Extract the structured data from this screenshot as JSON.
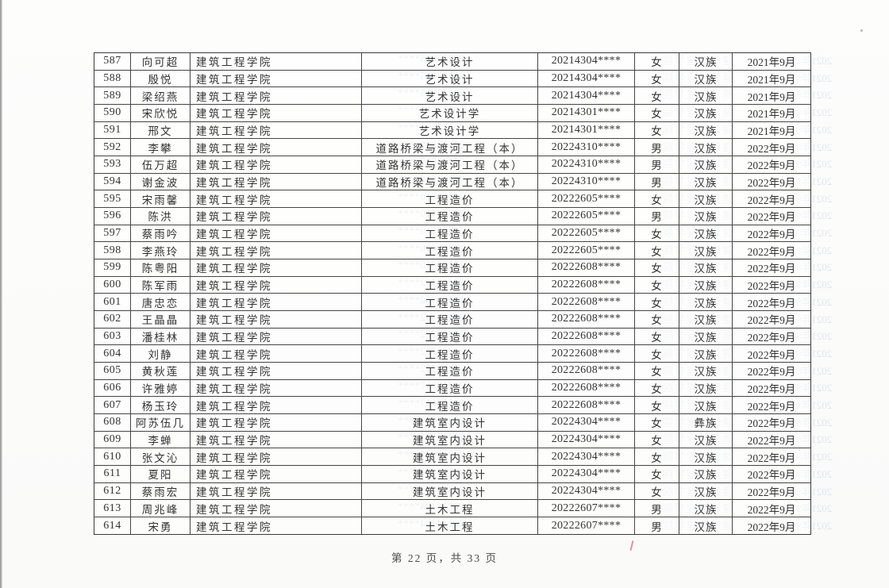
{
  "page": {
    "footer": "第 22 页，共 33 页"
  },
  "table": {
    "rows": [
      {
        "number": "587",
        "name": "向可超",
        "college": "建筑工程学院",
        "major": "艺术设计",
        "student_id": "20214304****",
        "gender": "女",
        "ethnicity": "汉族",
        "enrollment": "2021年9月"
      },
      {
        "number": "588",
        "name": "殷悦",
        "college": "建筑工程学院",
        "major": "艺术设计",
        "student_id": "20214304****",
        "gender": "女",
        "ethnicity": "汉族",
        "enrollment": "2021年9月"
      },
      {
        "number": "589",
        "name": "梁绍燕",
        "college": "建筑工程学院",
        "major": "艺术设计",
        "student_id": "20214304****",
        "gender": "女",
        "ethnicity": "汉族",
        "enrollment": "2021年9月"
      },
      {
        "number": "590",
        "name": "宋欣悦",
        "college": "建筑工程学院",
        "major": "艺术设计学",
        "student_id": "20214301****",
        "gender": "女",
        "ethnicity": "汉族",
        "enrollment": "2021年9月"
      },
      {
        "number": "591",
        "name": "邢文",
        "college": "建筑工程学院",
        "major": "艺术设计学",
        "student_id": "20214301****",
        "gender": "女",
        "ethnicity": "汉族",
        "enrollment": "2021年9月"
      },
      {
        "number": "592",
        "name": "李攀",
        "college": "建筑工程学院",
        "major": "道路桥梁与渡河工程（本）",
        "student_id": "20224310****",
        "gender": "男",
        "ethnicity": "汉族",
        "enrollment": "2022年9月"
      },
      {
        "number": "593",
        "name": "伍万超",
        "college": "建筑工程学院",
        "major": "道路桥梁与渡河工程（本）",
        "student_id": "20224310****",
        "gender": "男",
        "ethnicity": "汉族",
        "enrollment": "2022年9月"
      },
      {
        "number": "594",
        "name": "谢金波",
        "college": "建筑工程学院",
        "major": "道路桥梁与渡河工程（本）",
        "student_id": "20224310****",
        "gender": "男",
        "ethnicity": "汉族",
        "enrollment": "2022年9月"
      },
      {
        "number": "595",
        "name": "宋雨馨",
        "college": "建筑工程学院",
        "major": "工程造价",
        "student_id": "20222605****",
        "gender": "女",
        "ethnicity": "汉族",
        "enrollment": "2022年9月"
      },
      {
        "number": "596",
        "name": "陈洪",
        "college": "建筑工程学院",
        "major": "工程造价",
        "student_id": "20222605****",
        "gender": "男",
        "ethnicity": "汉族",
        "enrollment": "2022年9月"
      },
      {
        "number": "597",
        "name": "蔡雨吟",
        "college": "建筑工程学院",
        "major": "工程造价",
        "student_id": "20222605****",
        "gender": "女",
        "ethnicity": "汉族",
        "enrollment": "2022年9月"
      },
      {
        "number": "598",
        "name": "李燕玲",
        "college": "建筑工程学院",
        "major": "工程造价",
        "student_id": "20222605****",
        "gender": "女",
        "ethnicity": "汉族",
        "enrollment": "2022年9月"
      },
      {
        "number": "599",
        "name": "陈粤阳",
        "college": "建筑工程学院",
        "major": "工程造价",
        "student_id": "20222608****",
        "gender": "女",
        "ethnicity": "汉族",
        "enrollment": "2022年9月"
      },
      {
        "number": "600",
        "name": "陈军雨",
        "college": "建筑工程学院",
        "major": "工程造价",
        "student_id": "20222608****",
        "gender": "女",
        "ethnicity": "汉族",
        "enrollment": "2022年9月"
      },
      {
        "number": "601",
        "name": "唐忠恋",
        "college": "建筑工程学院",
        "major": "工程造价",
        "student_id": "20222608****",
        "gender": "女",
        "ethnicity": "汉族",
        "enrollment": "2022年9月"
      },
      {
        "number": "602",
        "name": "王晶晶",
        "college": "建筑工程学院",
        "major": "工程造价",
        "student_id": "20222608****",
        "gender": "女",
        "ethnicity": "汉族",
        "enrollment": "2022年9月"
      },
      {
        "number": "603",
        "name": "潘桂林",
        "college": "建筑工程学院",
        "major": "工程造价",
        "student_id": "20222608****",
        "gender": "女",
        "ethnicity": "汉族",
        "enrollment": "2022年9月"
      },
      {
        "number": "604",
        "name": "刘静",
        "college": "建筑工程学院",
        "major": "工程造价",
        "student_id": "20222608****",
        "gender": "女",
        "ethnicity": "汉族",
        "enrollment": "2022年9月"
      },
      {
        "number": "605",
        "name": "黄秋莲",
        "college": "建筑工程学院",
        "major": "工程造价",
        "student_id": "20222608****",
        "gender": "女",
        "ethnicity": "汉族",
        "enrollment": "2022年9月"
      },
      {
        "number": "606",
        "name": "许雅婷",
        "college": "建筑工程学院",
        "major": "工程造价",
        "student_id": "20222608****",
        "gender": "女",
        "ethnicity": "汉族",
        "enrollment": "2022年9月"
      },
      {
        "number": "607",
        "name": "杨玉玲",
        "college": "建筑工程学院",
        "major": "工程造价",
        "student_id": "20222608****",
        "gender": "女",
        "ethnicity": "汉族",
        "enrollment": "2022年9月"
      },
      {
        "number": "608",
        "name": "阿苏伍几",
        "college": "建筑工程学院",
        "major": "建筑室内设计",
        "student_id": "20224304****",
        "gender": "女",
        "ethnicity": "彝族",
        "enrollment": "2022年9月"
      },
      {
        "number": "609",
        "name": "李蝉",
        "college": "建筑工程学院",
        "major": "建筑室内设计",
        "student_id": "20224304****",
        "gender": "女",
        "ethnicity": "汉族",
        "enrollment": "2022年9月"
      },
      {
        "number": "610",
        "name": "张文沁",
        "college": "建筑工程学院",
        "major": "建筑室内设计",
        "student_id": "20224304****",
        "gender": "女",
        "ethnicity": "汉族",
        "enrollment": "2022年9月"
      },
      {
        "number": "611",
        "name": "夏阳",
        "college": "建筑工程学院",
        "major": "建筑室内设计",
        "student_id": "20224304****",
        "gender": "女",
        "ethnicity": "汉族",
        "enrollment": "2022年9月"
      },
      {
        "number": "612",
        "name": "蔡雨宏",
        "college": "建筑工程学院",
        "major": "建筑室内设计",
        "student_id": "20224304****",
        "gender": "女",
        "ethnicity": "汉族",
        "enrollment": "2022年9月"
      },
      {
        "number": "613",
        "name": "周兆峰",
        "college": "建筑工程学院",
        "major": "土木工程",
        "student_id": "20222607****",
        "gender": "男",
        "ethnicity": "汉族",
        "enrollment": "2022年9月"
      },
      {
        "number": "614",
        "name": "宋勇",
        "college": "建筑工程学院",
        "major": "土木工程",
        "student_id": "20222607****",
        "gender": "男",
        "ethnicity": "汉族",
        "enrollment": "2022年9月"
      }
    ]
  },
  "scan_artifacts": {
    "ghost_ids": [
      "20212608****",
      "20212605****",
      "20212605****",
      "20212605****",
      "20212605****",
      "20212605****",
      "20212605****",
      "20212610****",
      "20212610****",
      "20212610****",
      "20212610****",
      "20212610****",
      "20212610****",
      "20214302****",
      "20214302****",
      "20214302****",
      "20214302****",
      "20214302****",
      "20214302****",
      "20212607****",
      "20212607****",
      "20212607****",
      "20214301****",
      "20213805****",
      "20214301****",
      "20214304****",
      "20214304****",
      "20214304****"
    ],
    "ghost_college": "建筑工程学院",
    "ghost_date": "2021年9月"
  }
}
